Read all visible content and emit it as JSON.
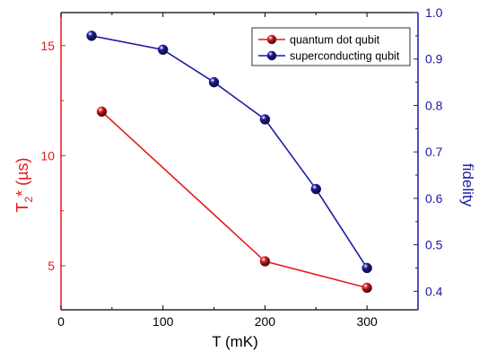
{
  "chart_data": {
    "type": "line",
    "title": "",
    "x_axis": {
      "label": "T (mK)",
      "range": [
        0,
        350
      ],
      "ticks": [
        0,
        100,
        200,
        300
      ],
      "tick_labels": [
        "0",
        "100",
        "200",
        "300"
      ]
    },
    "y_left": {
      "label_main": "T",
      "label_sub": "2",
      "label_rest": "* (µs)",
      "range": [
        3,
        16.5
      ],
      "ticks": [
        5,
        10,
        15
      ],
      "tick_labels": [
        "5",
        "10",
        "15"
      ],
      "color": "#e41a1c"
    },
    "y_right": {
      "label": "fidelity",
      "range": [
        0.36,
        1.0
      ],
      "ticks": [
        0.4,
        0.5,
        0.6,
        0.7,
        0.8,
        0.9,
        1.0
      ],
      "tick_labels": [
        "0.4",
        "0.5",
        "0.6",
        "0.7",
        "0.8",
        "0.9",
        "1.0"
      ],
      "color": "#1a1aa6"
    },
    "series": [
      {
        "name": "quantum dot qubit",
        "axis": "left",
        "color": "#e41a1c",
        "x": [
          40,
          200,
          300
        ],
        "y": [
          12,
          5.2,
          4.0
        ]
      },
      {
        "name": "superconducting qubit",
        "axis": "right",
        "color": "#1a1aa6",
        "x": [
          30,
          100,
          150,
          200,
          250,
          300
        ],
        "y": [
          0.95,
          0.92,
          0.85,
          0.77,
          0.62,
          0.45
        ]
      }
    ],
    "legend_position": "top-right",
    "grid": false
  }
}
